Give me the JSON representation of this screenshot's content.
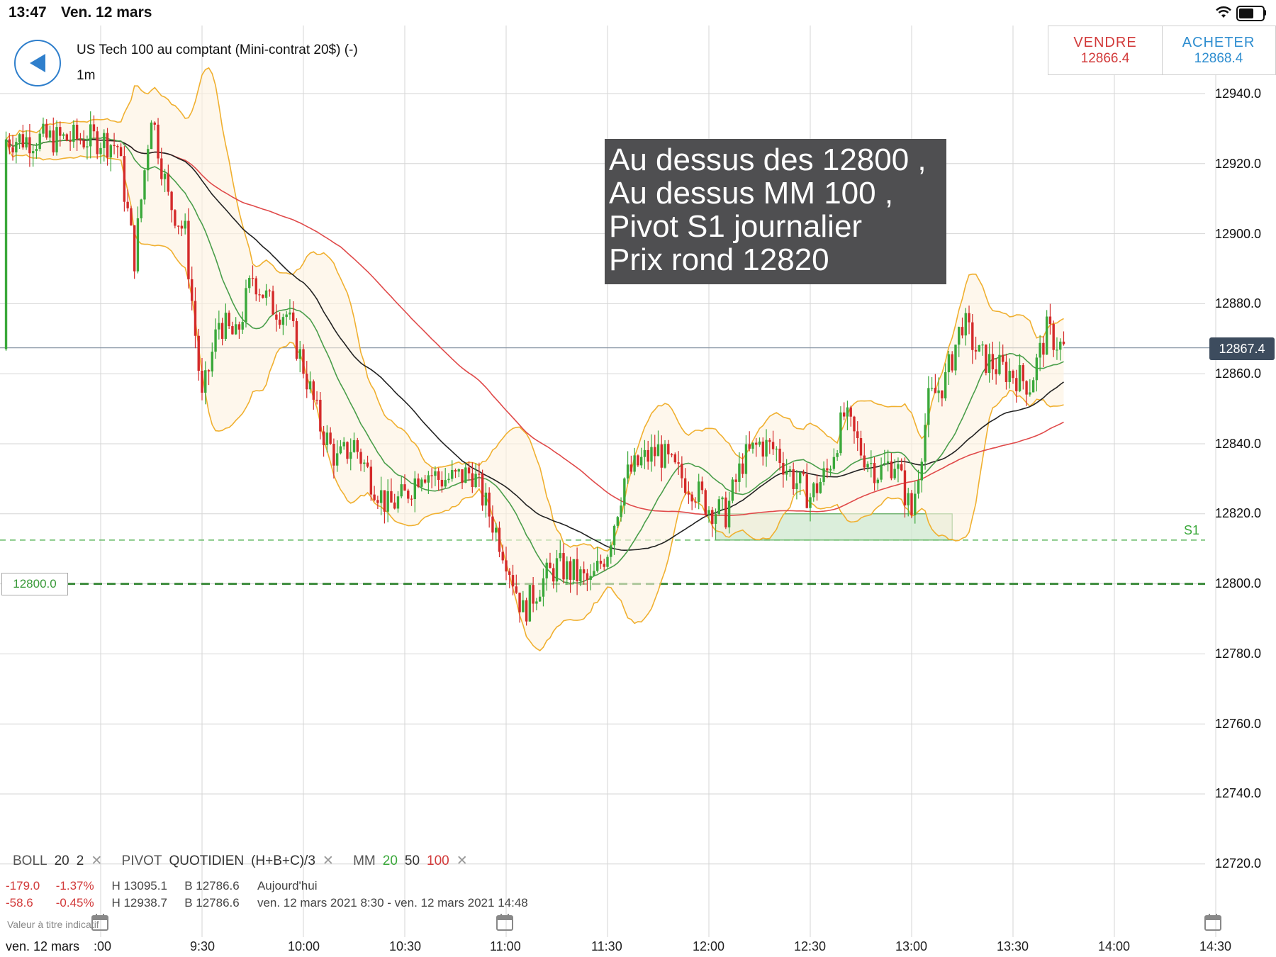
{
  "status_bar": {
    "time": "13:47",
    "date": "Ven. 12 mars"
  },
  "instrument": {
    "title": "US Tech 100 au comptant (Mini-contrat 20$) (-)",
    "timeframe": "1m"
  },
  "trade": {
    "sell_label": "VENDRE",
    "sell_price": "12866.4",
    "buy_label": "ACHETER",
    "buy_price": "12868.4"
  },
  "annotation": {
    "lines": [
      "Au dessus des 12800 ,",
      "Au dessus MM 100 ,",
      "Pivot S1 journalier",
      "Prix rond 12820"
    ]
  },
  "price_axis": {
    "ticks": [
      "12940.0",
      "12920.0",
      "12900.0",
      "12880.0",
      "12860.0",
      "12840.0",
      "12820.0",
      "12800.0",
      "12780.0",
      "12760.0",
      "12740.0",
      "12720.0"
    ]
  },
  "current_price": "12867.4",
  "level_marker": "12800.0",
  "pivot_label": "S1",
  "time_axis": {
    "ticks": [
      ":00",
      "9:30",
      "10:00",
      "10:30",
      "11:00",
      "11:30",
      "12:00",
      "12:30",
      "13:00",
      "13:30",
      "14:00",
      "14:30"
    ],
    "date": "ven. 12 mars"
  },
  "indicators": {
    "boll": {
      "name": "BOLL",
      "p1": "20",
      "p2": "2"
    },
    "pivot": {
      "name": "PIVOT",
      "type": "QUOTIDIEN",
      "formula": "(H+B+C)/3"
    },
    "mm": {
      "name": "MM",
      "p1": "20",
      "p2": "50",
      "p3": "100"
    },
    "close_icon": "close-icon"
  },
  "stats": {
    "today": {
      "change": "-179.0",
      "pct": "-1.37%",
      "high": "H 13095.1",
      "low": "B 12786.6",
      "label": "Aujourd'hui"
    },
    "range": {
      "change": "-58.6",
      "pct": "-0.45%",
      "high": "H 12938.7",
      "low": "B 12786.6",
      "label": "ven. 12 mars 2021 8:30 - ven. 12 mars 2021 14:48"
    }
  },
  "watermark": "Valeur à titre indicatif",
  "colors": {
    "up": "#3aa83a",
    "down": "#d42a2a",
    "boll": "#f0b030",
    "ma20": "#4a9e4a",
    "ma50": "#222222",
    "ma100": "#e04a4a",
    "zone": "#cfe8cf"
  },
  "chart_data": {
    "type": "line",
    "x_range": [
      "9:00",
      "14:30"
    ],
    "y_range": [
      12710,
      12950
    ],
    "series": [
      {
        "name": "20",
        "values": []
      },
      {
        "name": "50",
        "values": []
      },
      {
        "name": "100",
        "values": []
      }
    ],
    "levels": [
      {
        "label": "S1",
        "value": 12812.5
      },
      {
        "label": "12800.0",
        "value": 12800
      },
      {
        "label": "12867.4",
        "value": 12867.4
      }
    ],
    "zone": {
      "from_time": "12:02",
      "to_time": "13:12",
      "low": 12812.5,
      "high": 12820
    },
    "close_path": [
      [
        "9:00",
        12927
      ],
      [
        "9:05",
        12925
      ],
      [
        "9:10",
        12893
      ],
      [
        "9:15",
        12935
      ],
      [
        "9:20",
        12910
      ],
      [
        "9:25",
        12900
      ],
      [
        "9:30",
        12852
      ],
      [
        "9:35",
        12875
      ],
      [
        "9:40",
        12870
      ],
      [
        "9:45",
        12888
      ],
      [
        "9:50",
        12880
      ],
      [
        "9:55",
        12877
      ],
      [
        "10:00",
        12862
      ],
      [
        "10:05",
        12845
      ],
      [
        "10:10",
        12835
      ],
      [
        "10:15",
        12840
      ],
      [
        "10:20",
        12830
      ],
      [
        "10:25",
        12822
      ],
      [
        "10:30",
        12825
      ],
      [
        "10:35",
        12833
      ],
      [
        "10:40",
        12830
      ],
      [
        "10:45",
        12830
      ],
      [
        "10:50",
        12832
      ],
      [
        "10:55",
        12820
      ],
      [
        "11:00",
        12808
      ],
      [
        "11:05",
        12792
      ],
      [
        "11:10",
        12800
      ],
      [
        "11:15",
        12805
      ],
      [
        "11:20",
        12803
      ],
      [
        "11:25",
        12800
      ],
      [
        "11:30",
        12810
      ],
      [
        "11:35",
        12830
      ],
      [
        "11:40",
        12835
      ],
      [
        "11:45",
        12838
      ],
      [
        "11:50",
        12832
      ],
      [
        "11:55",
        12828
      ],
      [
        "12:00",
        12822
      ],
      [
        "12:05",
        12820
      ],
      [
        "12:10",
        12835
      ],
      [
        "12:15",
        12840
      ],
      [
        "12:20",
        12838
      ],
      [
        "12:25",
        12830
      ],
      [
        "12:30",
        12825
      ],
      [
        "12:35",
        12832
      ],
      [
        "12:40",
        12848
      ],
      [
        "12:45",
        12838
      ],
      [
        "12:50",
        12832
      ],
      [
        "12:55",
        12835
      ],
      [
        "13:00",
        12820
      ],
      [
        "13:05",
        12852
      ],
      [
        "13:10",
        12858
      ],
      [
        "13:15",
        12875
      ],
      [
        "13:20",
        12865
      ],
      [
        "13:25",
        12862
      ],
      [
        "13:30",
        12860
      ],
      [
        "13:35",
        12857
      ],
      [
        "13:40",
        12872
      ],
      [
        "13:45",
        12867
      ]
    ]
  }
}
